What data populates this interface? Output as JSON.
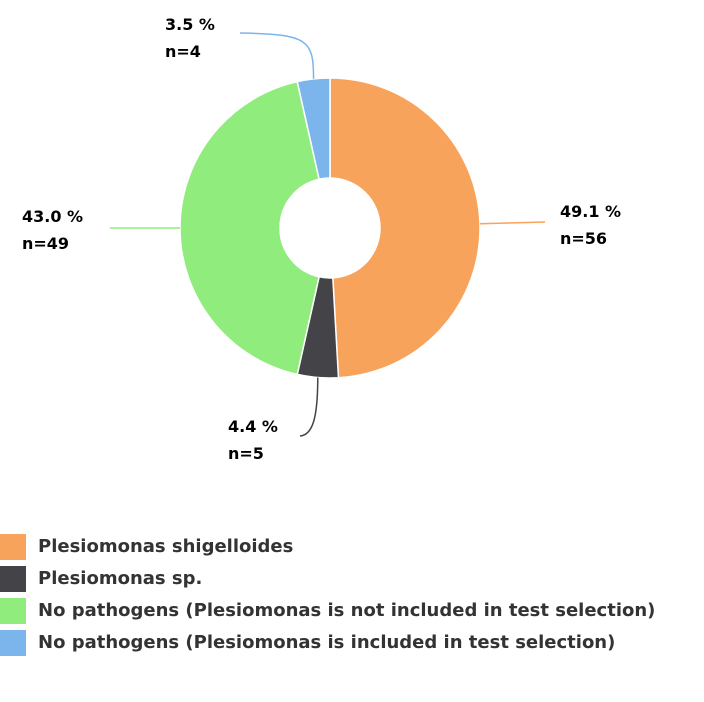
{
  "chart_data": {
    "type": "donut",
    "categories": [
      "Plesiomonas shigelloides",
      "Plesiomonas sp.",
      "No pathogens (Plesiomonas is not included in test selection)",
      "No pathogens (Plesiomonas is included in test selection)"
    ],
    "values": [
      49.1,
      4.4,
      43.0,
      3.5
    ],
    "value_labels": [
      "49.1 %",
      "4.4 %",
      "43.0 %",
      "3.5 %"
    ],
    "n_labels": [
      "n=56",
      "n=5",
      "n=49",
      "n=4"
    ],
    "colors": [
      "#f7a35c",
      "#434348",
      "#90ed7d",
      "#7cb5ec"
    ]
  }
}
